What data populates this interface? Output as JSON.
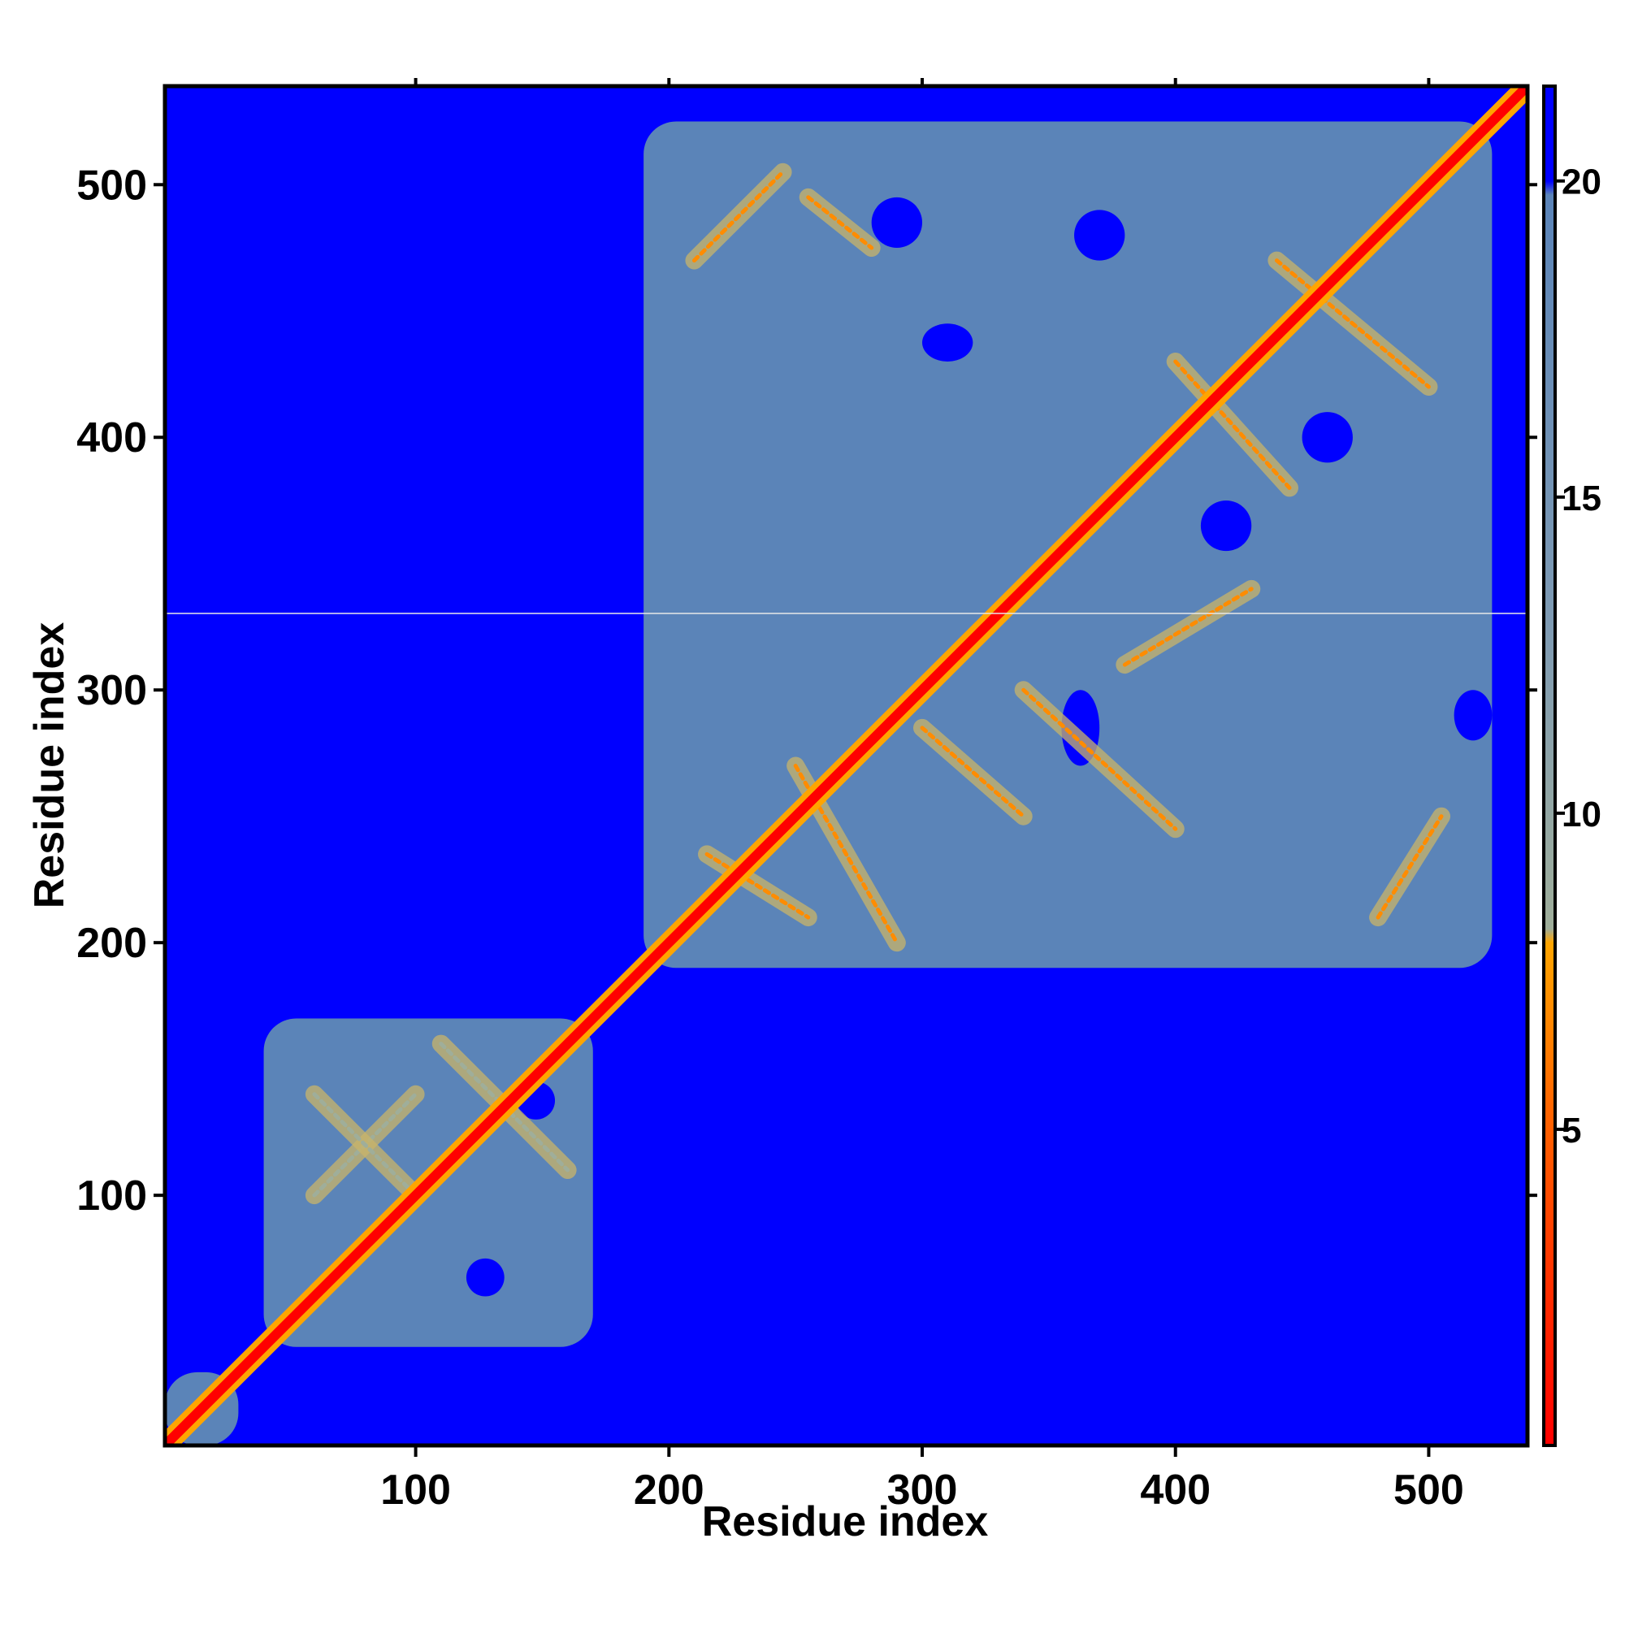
{
  "chart_data": {
    "type": "heatmap",
    "title": "",
    "xlabel": "Residue index",
    "ylabel": "Residue index",
    "xlim": [
      1,
      539
    ],
    "ylim": [
      1,
      539
    ],
    "x_ticks": [
      "100",
      "200",
      "300",
      "400",
      "500"
    ],
    "y_ticks": [
      "100",
      "200",
      "300",
      "400",
      "500"
    ],
    "x_tick_values": [
      100,
      200,
      300,
      400,
      500
    ],
    "y_tick_values": [
      100,
      200,
      300,
      400,
      500
    ],
    "colorbar": {
      "range": [
        0,
        21.5
      ],
      "ticks": [
        "5",
        "10",
        "15",
        "20"
      ],
      "tick_values": [
        5,
        10,
        15,
        20
      ],
      "colors": {
        "low": "#ff0000",
        "mid_low": "#ff8c00",
        "mid": "#9fae9a",
        "high": "#5b84b8",
        "background": "#0000ff"
      }
    },
    "domains": [
      {
        "name": "domain-1",
        "start": 1,
        "end": 30,
        "level": 13
      },
      {
        "name": "domain-2",
        "start": 40,
        "end": 170,
        "level": 17
      },
      {
        "name": "domain-3",
        "start": 190,
        "end": 525,
        "level": 17
      }
    ],
    "diagonal_band": {
      "start": 1,
      "end": 539,
      "level": 2
    },
    "secondary_contacts": [
      {
        "from": [
          215,
          235
        ],
        "to": [
          255,
          210
        ],
        "level": 8
      },
      {
        "from": [
          250,
          270
        ],
        "to": [
          290,
          200
        ],
        "level": 8
      },
      {
        "from": [
          300,
          285
        ],
        "to": [
          340,
          250
        ],
        "level": 8
      },
      {
        "from": [
          340,
          300
        ],
        "to": [
          400,
          245
        ],
        "level": 8
      },
      {
        "from": [
          380,
          310
        ],
        "to": [
          430,
          340
        ],
        "level": 8
      },
      {
        "from": [
          400,
          430
        ],
        "to": [
          445,
          380
        ],
        "level": 8
      },
      {
        "from": [
          440,
          470
        ],
        "to": [
          500,
          420
        ],
        "level": 8
      },
      {
        "from": [
          210,
          470
        ],
        "to": [
          245,
          505
        ],
        "level": 8
      },
      {
        "from": [
          255,
          495
        ],
        "to": [
          280,
          475
        ],
        "level": 8
      },
      {
        "from": [
          480,
          210
        ],
        "to": [
          505,
          250
        ],
        "level": 8
      },
      {
        "from": [
          60,
          100
        ],
        "to": [
          100,
          140
        ],
        "level": 9
      },
      {
        "from": [
          110,
          160
        ],
        "to": [
          160,
          110
        ],
        "level": 9
      },
      {
        "from": [
          60,
          140
        ],
        "to": [
          100,
          100
        ],
        "level": 9
      }
    ],
    "voids": [
      {
        "x": [
          280,
          300
        ],
        "y": [
          475,
          495
        ]
      },
      {
        "x": [
          360,
          380
        ],
        "y": [
          470,
          490
        ]
      },
      {
        "x": [
          510,
          525
        ],
        "y": [
          280,
          300
        ]
      },
      {
        "x": [
          355,
          370
        ],
        "y": [
          270,
          300
        ]
      },
      {
        "x": [
          300,
          320
        ],
        "y": [
          430,
          445
        ]
      },
      {
        "x": [
          120,
          135
        ],
        "y": [
          60,
          75
        ]
      },
      {
        "x": [
          140,
          155
        ],
        "y": [
          130,
          145
        ]
      },
      {
        "x": [
          450,
          470
        ],
        "y": [
          390,
          410
        ]
      },
      {
        "x": [
          410,
          430
        ],
        "y": [
          355,
          375
        ]
      }
    ],
    "grid": false,
    "legend": "colorbar-right"
  }
}
